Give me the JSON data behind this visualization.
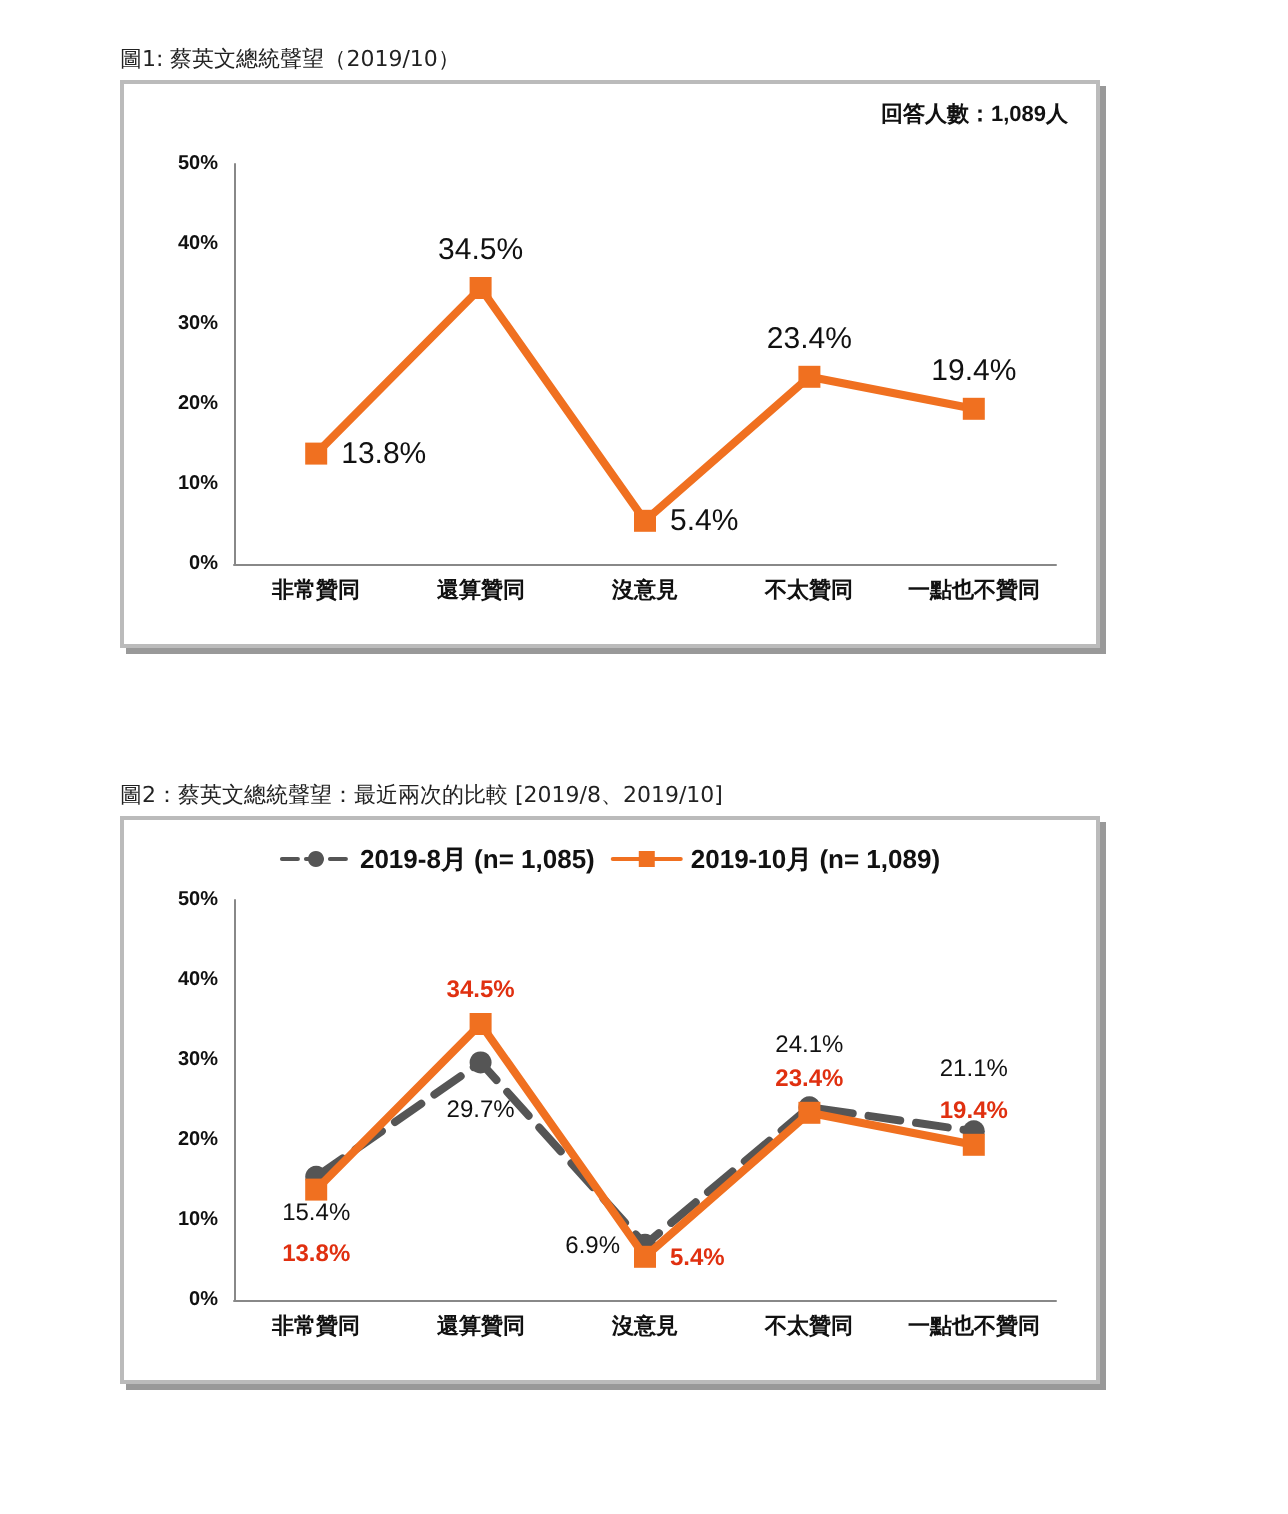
{
  "chart_data": [
    {
      "type": "line",
      "title": "圖1: 蔡英文總統聲望（2019/10）",
      "annotations": [
        "回答人數：1,089人"
      ],
      "categories": [
        "非常贊同",
        "還算贊同",
        "沒意見",
        "不太贊同",
        "一點也不贊同"
      ],
      "series": [
        {
          "color": "#f07020",
          "values": [
            13.8,
            34.5,
            5.4,
            23.4,
            19.4
          ],
          "value_labels": [
            "13.8%",
            "34.5%",
            "5.4%",
            "23.4%",
            "19.4%"
          ],
          "marker": "square",
          "line_style": "solid"
        }
      ],
      "ylim": [
        0,
        50
      ],
      "yticks": [
        {
          "value": 0,
          "label": "0%"
        },
        {
          "value": 10,
          "label": "10%"
        },
        {
          "value": 20,
          "label": "20%"
        },
        {
          "value": 30,
          "label": "30%"
        },
        {
          "value": 40,
          "label": "40%"
        },
        {
          "value": 50,
          "label": "50%"
        }
      ],
      "grid": false,
      "legend": false
    },
    {
      "type": "line",
      "title": "圖2：蔡英文總統聲望：最近兩次的比較 [2019/8、2019/10]",
      "categories": [
        "非常贊同",
        "還算贊同",
        "沒意見",
        "不太贊同",
        "一點也不贊同"
      ],
      "series": [
        {
          "name": "2019-8月 (n= 1,085)",
          "color": "#555555",
          "values": [
            15.4,
            29.7,
            6.9,
            24.1,
            21.1
          ],
          "value_labels": [
            "15.4%",
            "29.7%",
            "6.9%",
            "24.1%",
            "21.1%"
          ],
          "marker": "circle",
          "line_style": "dashed"
        },
        {
          "name": "2019-10月 (n= 1,089)",
          "color": "#f07020",
          "values": [
            13.8,
            34.5,
            5.4,
            23.4,
            19.4
          ],
          "value_labels": [
            "13.8%",
            "34.5%",
            "5.4%",
            "23.4%",
            "19.4%"
          ],
          "marker": "square",
          "line_style": "solid"
        }
      ],
      "ylim": [
        0,
        50
      ],
      "yticks": [
        {
          "value": 0,
          "label": "0%"
        },
        {
          "value": 10,
          "label": "10%"
        },
        {
          "value": 20,
          "label": "20%"
        },
        {
          "value": 30,
          "label": "30%"
        },
        {
          "value": 40,
          "label": "40%"
        },
        {
          "value": 50,
          "label": "50%"
        }
      ],
      "grid": false,
      "legend": "top"
    }
  ]
}
